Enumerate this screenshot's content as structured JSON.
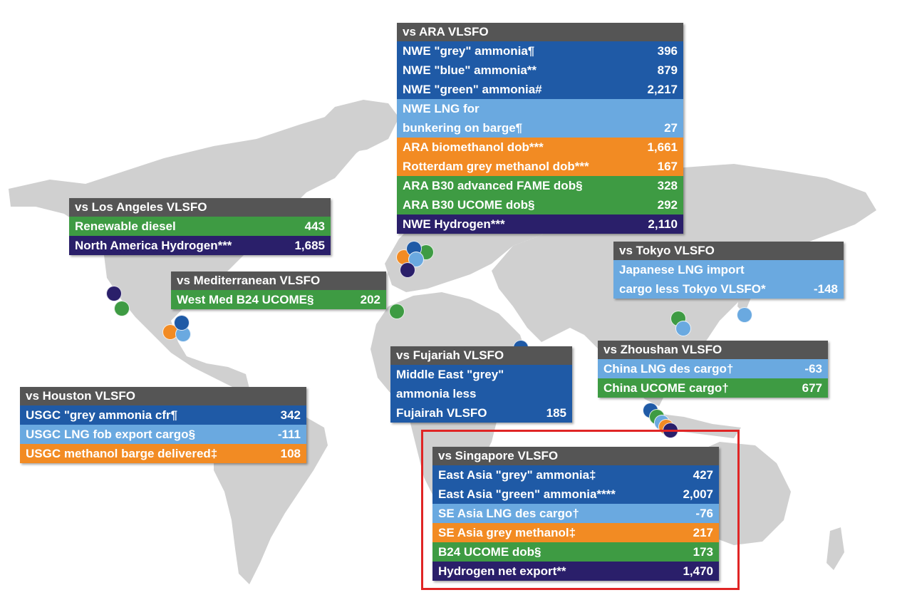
{
  "colors": {
    "dark_blue": "#1f5aa6",
    "light_blue": "#6aa9e0",
    "orange": "#f28b23",
    "green": "#3e9b43",
    "navy": "#2a1f6a",
    "header_grey": "#555555",
    "land_grey": "#d0d0d0",
    "highlight_red": "#e02525"
  },
  "panels": {
    "ara": {
      "title": "vs ARA VLSFO",
      "rows": [
        {
          "label": "NWE \"grey\" ammonia¶",
          "value": "396",
          "color": "dark_blue"
        },
        {
          "label": "NWE \"blue\" ammonia**",
          "value": "879",
          "color": "dark_blue"
        },
        {
          "label": "NWE \"green\" ammonia#",
          "value": "2,217",
          "color": "dark_blue"
        },
        {
          "label": "NWE LNG for\nbunkering on barge¶",
          "value": "27",
          "color": "light_blue"
        },
        {
          "label": "ARA biomethanol dob***",
          "value": "1,661",
          "color": "orange"
        },
        {
          "label": "Rotterdam grey methanol dob***",
          "value": "167",
          "color": "orange"
        },
        {
          "label": "ARA B30 advanced FAME dob§",
          "value": "328",
          "color": "green"
        },
        {
          "label": "ARA B30 UCOME dob§",
          "value": "292",
          "color": "green"
        },
        {
          "label": "NWE Hydrogen***",
          "value": "2,110",
          "color": "navy"
        }
      ]
    },
    "los_angeles": {
      "title": "vs Los Angeles VLSFO",
      "rows": [
        {
          "label": "Renewable diesel",
          "value": "443",
          "color": "green"
        },
        {
          "label": "North America Hydrogen***",
          "value": "1,685",
          "color": "navy"
        }
      ]
    },
    "mediterranean": {
      "title": "vs Mediterranean VLSFO",
      "rows": [
        {
          "label": "West Med B24 UCOME§",
          "value": "202",
          "color": "green"
        }
      ]
    },
    "tokyo": {
      "title": "vs Tokyo VLSFO",
      "rows": [
        {
          "label": "Japanese LNG import\ncargo less Tokyo VLSFO*",
          "value": "-148",
          "color": "light_blue"
        }
      ]
    },
    "zhoushan": {
      "title": "vs Zhoushan VLSFO",
      "rows": [
        {
          "label": "China LNG des cargo†",
          "value": "-63",
          "color": "light_blue"
        },
        {
          "label": "China UCOME cargo†",
          "value": "677",
          "color": "green"
        }
      ]
    },
    "fujairah": {
      "title": "vs Fujariah VLSFO",
      "rows": [
        {
          "label": "Middle East \"grey\"\nammonia less\nFujairah VLSFO",
          "value": "185",
          "color": "dark_blue"
        }
      ]
    },
    "houston": {
      "title": "vs Houston VLSFO",
      "rows": [
        {
          "label": "USGC \"grey ammonia cfr¶",
          "value": "342",
          "color": "dark_blue"
        },
        {
          "label": "USGC LNG fob export cargo§",
          "value": "-111",
          "color": "light_blue"
        },
        {
          "label": "USGC methanol barge delivered‡",
          "value": "108",
          "color": "orange"
        }
      ]
    },
    "singapore": {
      "title": "vs Singapore VLSFO",
      "rows": [
        {
          "label": "East Asia \"grey\" ammonia‡",
          "value": "427",
          "color": "dark_blue"
        },
        {
          "label": "East Asia \"green\" ammonia****",
          "value": "2,007",
          "color": "dark_blue"
        },
        {
          "label": "SE Asia LNG des cargo†",
          "value": "-76",
          "color": "light_blue"
        },
        {
          "label": "SE Asia grey methanol‡",
          "value": "217",
          "color": "orange"
        },
        {
          "label": "B24 UCOME dob§",
          "value": "173",
          "color": "green"
        },
        {
          "label": "Hydrogen net export**",
          "value": "1,470",
          "color": "navy"
        }
      ]
    }
  },
  "location_markers": {
    "los_angeles": [
      "navy",
      "green"
    ],
    "houston": [
      "orange",
      "light_blue",
      "dark_blue"
    ],
    "ara": [
      "green",
      "orange",
      "dark_blue",
      "light_blue",
      "navy"
    ],
    "mediterranean": [
      "green"
    ],
    "zhoushan": [
      "green",
      "light_blue"
    ],
    "tokyo": [
      "light_blue"
    ],
    "fujairah": [
      "dark_blue"
    ],
    "singapore": [
      "dark_blue",
      "green",
      "light_blue",
      "orange",
      "navy"
    ]
  }
}
